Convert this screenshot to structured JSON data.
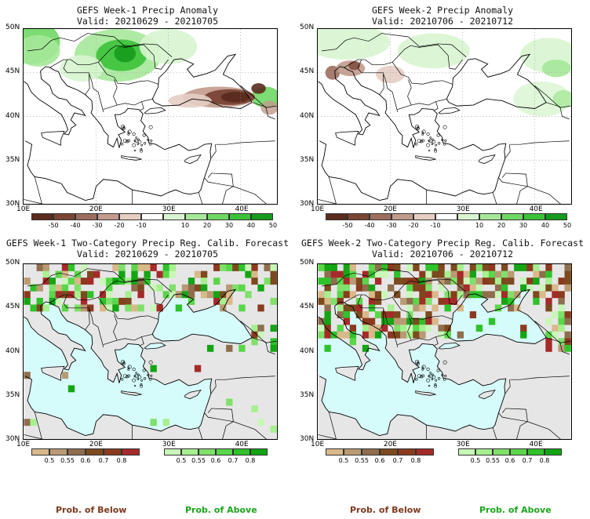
{
  "panels": {
    "p1": {
      "title": "GEFS Week-1 Precip Anomaly",
      "valid": "Valid: 20210629 - 20210705"
    },
    "p2": {
      "title": "GEFS Week-2 Precip Anomaly",
      "valid": "Valid: 20210706 - 20210712"
    },
    "p3": {
      "title": "GEFS Week-1 Two-Category Precip Reg. Calib. Forecast",
      "valid": "Valid: 20210629 - 20210705"
    },
    "p4": {
      "title": "GEFS Week-2 Two-Category Precip Reg. Calib. Forecast",
      "valid": "Valid: 20210706 - 20210712"
    }
  },
  "axes": {
    "lat_labels": [
      "50N",
      "45N",
      "40N",
      "35N",
      "30N"
    ],
    "lon_labels": [
      "10E",
      "20E",
      "30E",
      "40E"
    ]
  },
  "anomaly_colorbar": {
    "labels": [
      "-50",
      "-40",
      "-30",
      "-20",
      "-10",
      "10",
      "20",
      "30",
      "40",
      "50"
    ],
    "colors": [
      "#5a2b1e",
      "#7a4535",
      "#9d6e5e",
      "#c19a8c",
      "#e6cec4",
      "#ffffff",
      "#d8f5d0",
      "#a6e89a",
      "#6fd864",
      "#3cc23a",
      "#159a1d"
    ]
  },
  "prob_below": {
    "labels": [
      "0.5",
      "0.55",
      "0.6",
      "0.7",
      "0.8"
    ],
    "colors": [
      "#d9b88a",
      "#b99a73",
      "#8f6e4e",
      "#7c4a1e",
      "#8b3a1e",
      "#a52a2a"
    ],
    "caption": "Prob. of Below"
  },
  "prob_above": {
    "labels": [
      "0.5",
      "0.55",
      "0.6",
      "0.7",
      "0.8"
    ],
    "colors": [
      "#c8f7b8",
      "#a6f08f",
      "#7fe06a",
      "#5ad64a",
      "#2fc22a",
      "#14a514"
    ],
    "caption": "Prob. of Above"
  },
  "colors": {
    "sea_prob": "#d6fbfb",
    "land_prob": "#e6e6e6",
    "below_caption": "#7b3a1e",
    "above_caption": "#1aa51a"
  }
}
